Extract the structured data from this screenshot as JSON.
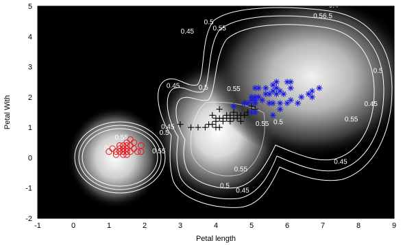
{
  "chart_data": {
    "type": "scatter",
    "title": "",
    "xlabel": "Petal length",
    "ylabel": "Petal With",
    "xlim": [
      -1,
      9
    ],
    "ylim": [
      -2,
      5
    ],
    "xticks": [
      "-1",
      "0",
      "1",
      "2",
      "3",
      "4",
      "5",
      "6",
      "7",
      "8",
      "9"
    ],
    "yticks": [
      "-2",
      "-1",
      "0",
      "1",
      "2",
      "3",
      "4",
      "5"
    ],
    "grid": false,
    "legend": "none",
    "background": "grayscale density map",
    "colors": {
      "circle": "#e8141c",
      "plus": "#000000",
      "star": "#1a1ae0",
      "contour": "#ffffff"
    },
    "series": [
      {
        "marker": "circle",
        "color": "#e8141c",
        "points": [
          [
            1.0,
            0.2
          ],
          [
            1.1,
            0.3
          ],
          [
            1.2,
            0.2
          ],
          [
            1.3,
            0.2
          ],
          [
            1.3,
            0.3
          ],
          [
            1.3,
            0.4
          ],
          [
            1.4,
            0.2
          ],
          [
            1.4,
            0.3
          ],
          [
            1.4,
            0.1
          ],
          [
            1.4,
            0.4
          ],
          [
            1.5,
            0.2
          ],
          [
            1.5,
            0.1
          ],
          [
            1.5,
            0.3
          ],
          [
            1.5,
            0.4
          ],
          [
            1.6,
            0.2
          ],
          [
            1.6,
            0.4
          ],
          [
            1.6,
            0.6
          ],
          [
            1.7,
            0.3
          ],
          [
            1.7,
            0.5
          ],
          [
            1.8,
            0.2
          ],
          [
            1.9,
            0.2
          ],
          [
            1.9,
            0.4
          ],
          [
            1.5,
            0.5
          ],
          [
            1.2,
            0.1
          ]
        ]
      },
      {
        "marker": "plus",
        "color": "#000000",
        "points": [
          [
            3.0,
            1.1
          ],
          [
            3.3,
            1.0
          ],
          [
            3.5,
            1.0
          ],
          [
            3.7,
            1.0
          ],
          [
            3.8,
            1.1
          ],
          [
            3.9,
            1.1
          ],
          [
            3.9,
            1.4
          ],
          [
            4.0,
            1.0
          ],
          [
            4.0,
            1.2
          ],
          [
            4.0,
            1.3
          ],
          [
            4.1,
            1.0
          ],
          [
            4.1,
            1.3
          ],
          [
            4.2,
            1.2
          ],
          [
            4.2,
            1.3
          ],
          [
            4.3,
            1.3
          ],
          [
            4.4,
            1.2
          ],
          [
            4.4,
            1.4
          ],
          [
            4.5,
            1.3
          ],
          [
            4.5,
            1.5
          ],
          [
            4.6,
            1.3
          ],
          [
            4.6,
            1.4
          ],
          [
            4.7,
            1.2
          ],
          [
            4.7,
            1.4
          ],
          [
            4.8,
            1.4
          ],
          [
            4.8,
            1.8
          ],
          [
            4.9,
            1.5
          ],
          [
            5.0,
            1.7
          ],
          [
            5.1,
            1.6
          ],
          [
            4.4,
            1.3
          ],
          [
            4.3,
            1.4
          ],
          [
            4.1,
            1.6
          ]
        ]
      },
      {
        "marker": "star",
        "color": "#1a1ae0",
        "points": [
          [
            4.5,
            1.7
          ],
          [
            4.8,
            1.8
          ],
          [
            4.9,
            1.8
          ],
          [
            5.0,
            1.5
          ],
          [
            5.0,
            2.0
          ],
          [
            5.1,
            1.5
          ],
          [
            5.1,
            1.8
          ],
          [
            5.1,
            1.9
          ],
          [
            5.1,
            2.0
          ],
          [
            5.1,
            2.3
          ],
          [
            5.2,
            2.0
          ],
          [
            5.2,
            2.3
          ],
          [
            5.3,
            1.9
          ],
          [
            5.4,
            2.1
          ],
          [
            5.4,
            2.3
          ],
          [
            5.5,
            1.8
          ],
          [
            5.5,
            2.1
          ],
          [
            5.6,
            1.4
          ],
          [
            5.6,
            1.8
          ],
          [
            5.6,
            2.2
          ],
          [
            5.7,
            2.1
          ],
          [
            5.7,
            2.3
          ],
          [
            5.7,
            2.5
          ],
          [
            5.8,
            1.6
          ],
          [
            5.8,
            1.8
          ],
          [
            5.8,
            2.2
          ],
          [
            5.9,
            2.1
          ],
          [
            6.0,
            1.8
          ],
          [
            6.0,
            2.5
          ],
          [
            6.1,
            1.9
          ],
          [
            6.1,
            2.3
          ],
          [
            6.3,
            1.8
          ],
          [
            6.4,
            2.0
          ],
          [
            6.6,
            2.1
          ],
          [
            6.7,
            2.0
          ],
          [
            6.7,
            2.2
          ],
          [
            6.9,
            2.3
          ],
          [
            6.1,
            2.5
          ],
          [
            5.6,
            2.4
          ],
          [
            5.0,
            1.9
          ]
        ]
      }
    ],
    "contour_labels": [
      {
        "text": "0.45",
        "x": 1.05,
        "y": 0.25
      },
      {
        "text": "0.5",
        "x": 1.15,
        "y": 0.15
      },
      {
        "text": "0.55",
        "x": 1.35,
        "y": 0.6
      },
      {
        "text": "0.55",
        "x": 2.4,
        "y": 0.15
      },
      {
        "text": "0.5",
        "x": 2.55,
        "y": 0.75
      },
      {
        "text": "0.45",
        "x": 2.65,
        "y": 0.95
      },
      {
        "text": "0.45",
        "x": 3.2,
        "y": 4.1
      },
      {
        "text": "0.5",
        "x": 3.8,
        "y": 4.4
      },
      {
        "text": "0.55",
        "x": 4.1,
        "y": 4.2
      },
      {
        "text": "0.45",
        "x": 2.8,
        "y": 2.3
      },
      {
        "text": "0.5",
        "x": 3.65,
        "y": 2.25
      },
      {
        "text": "0.55",
        "x": 4.5,
        "y": 2.2
      },
      {
        "text": "0.5",
        "x": 5.75,
        "y": 1.1
      },
      {
        "text": "0.55",
        "x": 5.3,
        "y": 1.05
      },
      {
        "text": "0.55",
        "x": 4.7,
        "y": -0.45
      },
      {
        "text": "0.5",
        "x": 4.25,
        "y": -1.0
      },
      {
        "text": "0.45",
        "x": 4.75,
        "y": -1.15
      },
      {
        "text": "0.45",
        "x": 7.5,
        "y": -0.2
      },
      {
        "text": "0.55",
        "x": 7.8,
        "y": 1.2
      },
      {
        "text": "0.45",
        "x": 8.35,
        "y": 1.7
      },
      {
        "text": "0.5",
        "x": 8.55,
        "y": 2.8
      },
      {
        "text": "0.56.5",
        "x": 7.0,
        "y": 4.6
      },
      {
        "text": "0.4",
        "x": 7.3,
        "y": 4.95
      }
    ]
  }
}
